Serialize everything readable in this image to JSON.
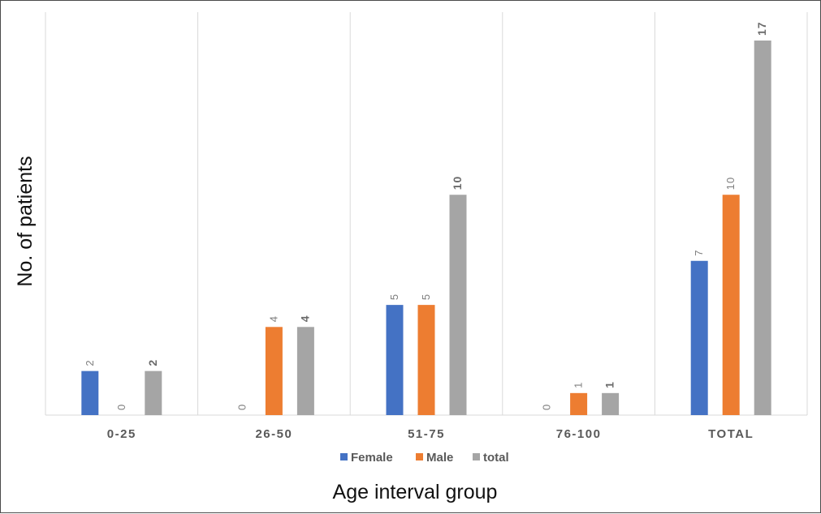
{
  "chart_data": {
    "type": "bar",
    "categories": [
      "0-25",
      "26-50",
      "51-75",
      "76-100",
      "TOTAL"
    ],
    "series": [
      {
        "name": "Female",
        "values": [
          2,
          0,
          5,
          0,
          7
        ],
        "color": "#4472c4"
      },
      {
        "name": "Male",
        "values": [
          0,
          4,
          5,
          1,
          10
        ],
        "color": "#ed7d31"
      },
      {
        "name": "total",
        "values": [
          2,
          4,
          10,
          1,
          17
        ],
        "color": "#a5a5a5"
      }
    ],
    "xlabel": "Age interval group",
    "ylabel": "No. of patients",
    "ylim": [
      0,
      17
    ],
    "grid": "vertical category separators",
    "legend": "bottom",
    "data_labels": true,
    "bold_labels_series": [
      "total"
    ]
  }
}
